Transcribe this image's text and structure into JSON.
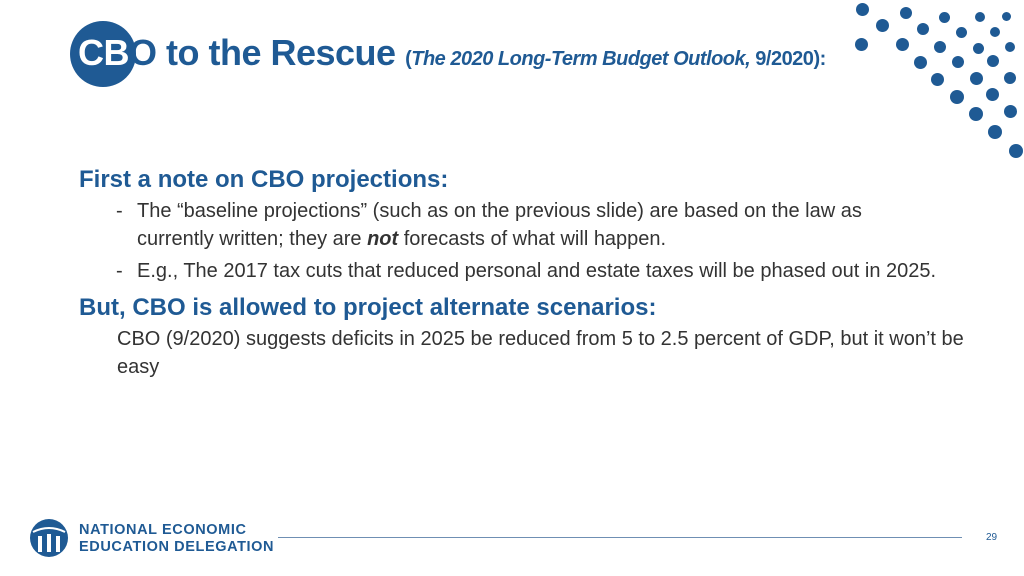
{
  "title": {
    "cb": "CB",
    "rest": "O to the Rescue",
    "paren_open": "(",
    "italic": "The 2020 Long-Term Budget Outlook,",
    "date": " 9/2020",
    "paren_close": "):"
  },
  "section1": {
    "heading": "First a note on CBO projections:",
    "bullets": [
      {
        "dash": "-",
        "before": "The “baseline projections” (such as on the previous slide) are based on the law as currently written; they are ",
        "emphasis": "not",
        "after": " forecasts of what will happen."
      },
      {
        "dash": "-",
        "text": "E.g., The 2017 tax cuts that reduced personal and estate taxes will be phased out in 2025."
      }
    ]
  },
  "section2": {
    "heading": "But, CBO is allowed to project alternate scenarios:",
    "text": "CBO (9/2020) suggests deficits in 2025 be reduced from 5 to 2.5 percent of GDP, but it won’t be  easy"
  },
  "footer": {
    "org_line1": "NATIONAL ECONOMIC",
    "org_line2": "EDUCATION DELEGATION",
    "page_number": "29"
  },
  "colors": {
    "brand_blue": "#1f5a94",
    "body_text": "#333333"
  },
  "icons": {
    "decoration": "dot-pattern",
    "logo": "ned-logo-icon"
  }
}
